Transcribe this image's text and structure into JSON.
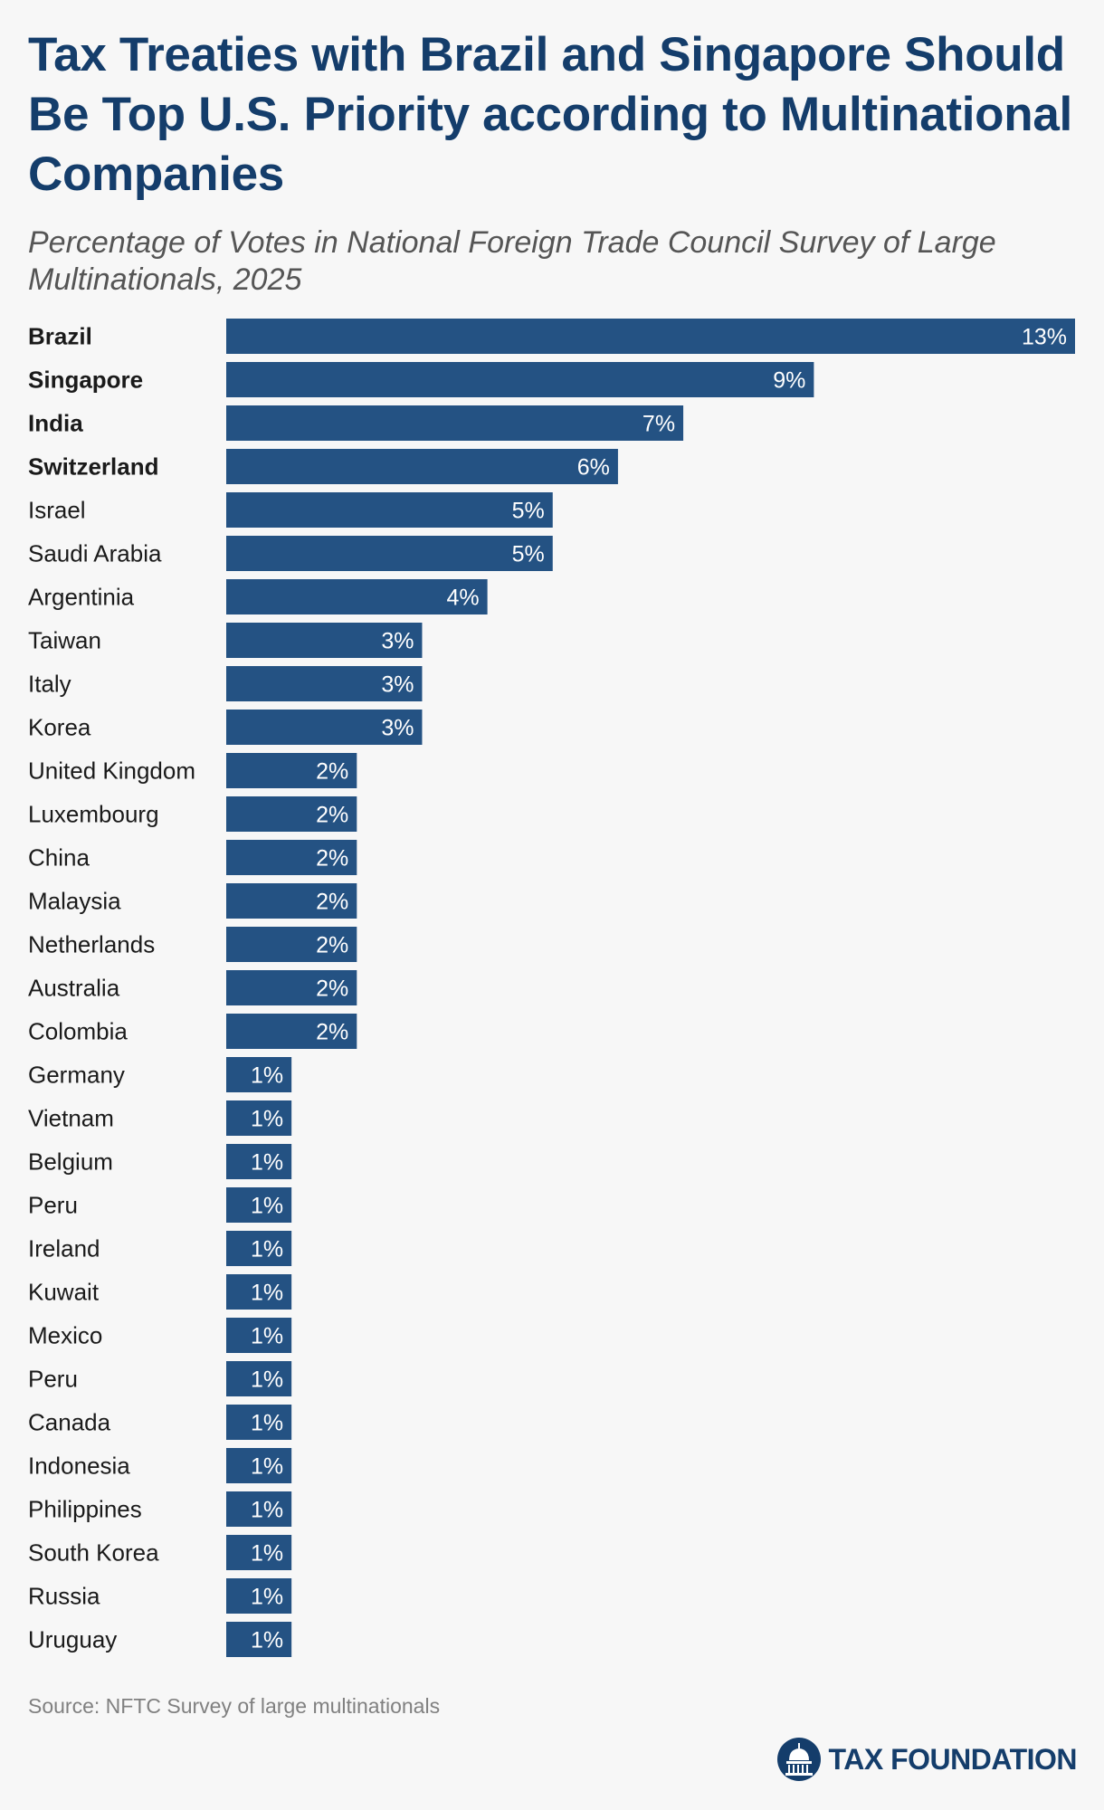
{
  "header": {
    "title": "Tax Treaties with Brazil and Singapore Should Be Top U.S. Priority according to Multinational Companies",
    "subtitle": "Percentage of Votes in National Foreign Trade Council Survey of Large Multinationals, 2025"
  },
  "footer": {
    "source": "Source: NFTC Survey of large multinationals",
    "logo_text": "TAX FOUNDATION"
  },
  "colors": {
    "bar": "#245283",
    "title": "#143d6b",
    "label": "#1a1a1a",
    "value_label": "#ffffff"
  },
  "chart_data": {
    "type": "bar",
    "orientation": "horizontal",
    "title": "Tax Treaties with Brazil and Singapore Should Be Top U.S. Priority according to Multinational Companies",
    "subtitle": "Percentage of Votes in National Foreign Trade Council Survey of Large Multinationals, 2025",
    "xlabel": "",
    "ylabel": "",
    "xlim": [
      0,
      13
    ],
    "grid": false,
    "legend": "none",
    "value_suffix": "%",
    "categories": [
      "Brazil",
      "Singapore",
      "India",
      "Switzerland",
      "Israel",
      "Saudi Arabia",
      "Argentinia",
      "Taiwan",
      "Italy",
      "Korea",
      "United Kingdom",
      "Luxembourg",
      "China",
      "Malaysia",
      "Netherlands",
      "Australia",
      "Colombia",
      "Germany",
      "Vietnam",
      "Belgium",
      "Peru",
      "Ireland",
      "Kuwait",
      "Mexico",
      "Peru",
      "Canada",
      "Indonesia",
      "Philippines",
      "South Korea",
      "Russia",
      "Uruguay"
    ],
    "values": [
      13,
      9,
      7,
      6,
      5,
      5,
      4,
      3,
      3,
      3,
      2,
      2,
      2,
      2,
      2,
      2,
      2,
      1,
      1,
      1,
      1,
      1,
      1,
      1,
      1,
      1,
      1,
      1,
      1,
      1,
      1
    ],
    "value_labels": [
      "13%",
      "9%",
      "7%",
      "6%",
      "5%",
      "5%",
      "4%",
      "3%",
      "3%",
      "3%",
      "2%",
      "2%",
      "2%",
      "2%",
      "2%",
      "2%",
      "2%",
      "1%",
      "1%",
      "1%",
      "1%",
      "1%",
      "1%",
      "1%",
      "1%",
      "1%",
      "1%",
      "1%",
      "1%",
      "1%",
      "1%"
    ],
    "bold_categories": [
      "Brazil",
      "Singapore",
      "India",
      "Switzerland"
    ]
  }
}
